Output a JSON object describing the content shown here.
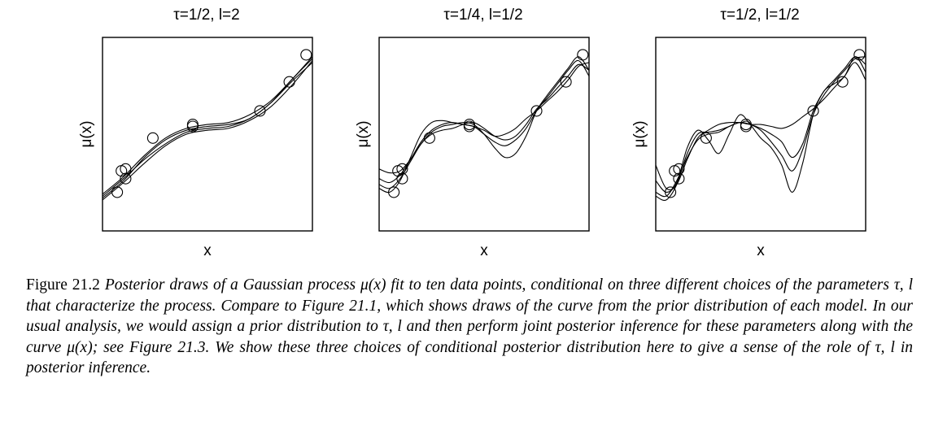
{
  "chart_data": [
    {
      "type": "line",
      "title": "τ=1/2, l=2",
      "xlabel": "x",
      "ylabel": "μ(x)",
      "xlim": [
        0,
        1
      ],
      "ylim": [
        0,
        1
      ],
      "ticks": "none",
      "points": [
        [
          0.07,
          0.2
        ],
        [
          0.09,
          0.31
        ],
        [
          0.11,
          0.32
        ],
        [
          0.11,
          0.27
        ],
        [
          0.24,
          0.48
        ],
        [
          0.43,
          0.54
        ],
        [
          0.43,
          0.55
        ],
        [
          0.75,
          0.62
        ],
        [
          0.89,
          0.77
        ],
        [
          0.97,
          0.91
        ]
      ],
      "series": [
        {
          "x": [
            0,
            0.1,
            0.2,
            0.3,
            0.4,
            0.5,
            0.6,
            0.7,
            0.8,
            0.9,
            1.0
          ],
          "values": [
            0.19,
            0.28,
            0.39,
            0.48,
            0.53,
            0.55,
            0.56,
            0.6,
            0.67,
            0.78,
            0.9
          ]
        },
        {
          "x": [
            0,
            0.1,
            0.2,
            0.3,
            0.4,
            0.5,
            0.6,
            0.7,
            0.8,
            0.9,
            1.0
          ],
          "values": [
            0.17,
            0.26,
            0.38,
            0.47,
            0.52,
            0.54,
            0.55,
            0.58,
            0.66,
            0.77,
            0.87
          ]
        },
        {
          "x": [
            0,
            0.1,
            0.2,
            0.3,
            0.4,
            0.5,
            0.6,
            0.7,
            0.8,
            0.9,
            1.0
          ],
          "values": [
            0.18,
            0.27,
            0.37,
            0.45,
            0.51,
            0.53,
            0.54,
            0.58,
            0.66,
            0.78,
            0.89
          ]
        },
        {
          "x": [
            0,
            0.1,
            0.2,
            0.3,
            0.4,
            0.5,
            0.6,
            0.7,
            0.8,
            0.9,
            1.0
          ],
          "values": [
            0.16,
            0.25,
            0.35,
            0.44,
            0.5,
            0.52,
            0.53,
            0.57,
            0.64,
            0.75,
            0.88
          ]
        }
      ]
    },
    {
      "type": "line",
      "title": "τ=1/4, l=1/2",
      "xlabel": "x",
      "ylabel": "μ(x)",
      "xlim": [
        0,
        1
      ],
      "ylim": [
        0,
        1
      ],
      "ticks": "none",
      "points": [
        [
          0.07,
          0.2
        ],
        [
          0.09,
          0.31
        ],
        [
          0.11,
          0.32
        ],
        [
          0.11,
          0.27
        ],
        [
          0.24,
          0.48
        ],
        [
          0.43,
          0.54
        ],
        [
          0.43,
          0.55
        ],
        [
          0.75,
          0.62
        ],
        [
          0.89,
          0.77
        ],
        [
          0.97,
          0.91
        ]
      ],
      "series": [
        {
          "x": [
            0,
            0.05,
            0.1,
            0.15,
            0.2,
            0.25,
            0.3,
            0.35,
            0.4,
            0.45,
            0.5,
            0.55,
            0.6,
            0.65,
            0.7,
            0.75,
            0.8,
            0.85,
            0.9,
            0.95,
            1.0
          ],
          "values": [
            0.32,
            0.3,
            0.31,
            0.37,
            0.45,
            0.51,
            0.54,
            0.55,
            0.56,
            0.55,
            0.5,
            0.43,
            0.38,
            0.4,
            0.49,
            0.62,
            0.7,
            0.77,
            0.84,
            0.9,
            0.83
          ]
        },
        {
          "x": [
            0,
            0.05,
            0.1,
            0.15,
            0.2,
            0.25,
            0.3,
            0.35,
            0.4,
            0.45,
            0.5,
            0.55,
            0.6,
            0.65,
            0.7,
            0.75,
            0.8,
            0.85,
            0.9,
            0.95,
            1.0
          ],
          "values": [
            0.24,
            0.22,
            0.27,
            0.36,
            0.45,
            0.5,
            0.52,
            0.53,
            0.55,
            0.56,
            0.53,
            0.49,
            0.47,
            0.49,
            0.55,
            0.63,
            0.68,
            0.74,
            0.8,
            0.86,
            0.83
          ]
        },
        {
          "x": [
            0,
            0.05,
            0.1,
            0.15,
            0.2,
            0.25,
            0.3,
            0.35,
            0.4,
            0.45,
            0.5,
            0.55,
            0.6,
            0.65,
            0.7,
            0.75,
            0.8,
            0.85,
            0.9,
            0.95,
            1.0
          ],
          "values": [
            0.22,
            0.2,
            0.26,
            0.38,
            0.5,
            0.56,
            0.57,
            0.56,
            0.55,
            0.54,
            0.52,
            0.49,
            0.5,
            0.53,
            0.58,
            0.62,
            0.67,
            0.72,
            0.78,
            0.85,
            0.87
          ]
        },
        {
          "x": [
            0,
            0.05,
            0.1,
            0.15,
            0.2,
            0.25,
            0.3,
            0.35,
            0.4,
            0.45,
            0.5,
            0.55,
            0.6,
            0.65,
            0.7,
            0.75,
            0.8,
            0.85,
            0.9,
            0.95,
            1.0
          ],
          "values": [
            0.27,
            0.25,
            0.29,
            0.37,
            0.46,
            0.52,
            0.55,
            0.56,
            0.55,
            0.54,
            0.5,
            0.46,
            0.44,
            0.47,
            0.53,
            0.62,
            0.69,
            0.76,
            0.83,
            0.88,
            0.8
          ]
        }
      ]
    },
    {
      "type": "line",
      "title": "τ=1/2, l=1/2",
      "xlabel": "x",
      "ylabel": "μ(x)",
      "xlim": [
        0,
        1
      ],
      "ylim": [
        0,
        1
      ],
      "ticks": "none",
      "points": [
        [
          0.07,
          0.2
        ],
        [
          0.09,
          0.31
        ],
        [
          0.11,
          0.32
        ],
        [
          0.11,
          0.27
        ],
        [
          0.24,
          0.48
        ],
        [
          0.43,
          0.54
        ],
        [
          0.43,
          0.55
        ],
        [
          0.75,
          0.62
        ],
        [
          0.89,
          0.77
        ],
        [
          0.97,
          0.91
        ]
      ],
      "series": [
        {
          "x": [
            0,
            0.05,
            0.1,
            0.15,
            0.2,
            0.25,
            0.3,
            0.35,
            0.4,
            0.45,
            0.5,
            0.55,
            0.6,
            0.65,
            0.7,
            0.75,
            0.8,
            0.85,
            0.9,
            0.95,
            1.0
          ],
          "values": [
            0.26,
            0.2,
            0.25,
            0.43,
            0.52,
            0.47,
            0.4,
            0.5,
            0.6,
            0.55,
            0.48,
            0.43,
            0.34,
            0.2,
            0.35,
            0.6,
            0.72,
            0.76,
            0.8,
            0.9,
            0.82
          ]
        },
        {
          "x": [
            0,
            0.05,
            0.1,
            0.15,
            0.2,
            0.25,
            0.3,
            0.35,
            0.4,
            0.45,
            0.5,
            0.55,
            0.6,
            0.65,
            0.7,
            0.75,
            0.8,
            0.85,
            0.9,
            0.95,
            1.0
          ],
          "values": [
            0.18,
            0.16,
            0.24,
            0.4,
            0.5,
            0.51,
            0.52,
            0.54,
            0.56,
            0.55,
            0.53,
            0.5,
            0.46,
            0.38,
            0.45,
            0.62,
            0.72,
            0.78,
            0.84,
            0.9,
            0.86
          ]
        },
        {
          "x": [
            0,
            0.05,
            0.1,
            0.15,
            0.2,
            0.25,
            0.3,
            0.35,
            0.4,
            0.45,
            0.5,
            0.55,
            0.6,
            0.65,
            0.7,
            0.75,
            0.8,
            0.85,
            0.9,
            0.95,
            1.0
          ],
          "values": [
            0.34,
            0.22,
            0.24,
            0.37,
            0.48,
            0.52,
            0.55,
            0.56,
            0.56,
            0.55,
            0.55,
            0.54,
            0.53,
            0.55,
            0.59,
            0.63,
            0.68,
            0.74,
            0.8,
            0.87,
            0.78
          ]
        },
        {
          "x": [
            0,
            0.05,
            0.1,
            0.15,
            0.2,
            0.25,
            0.3,
            0.35,
            0.4,
            0.45,
            0.5,
            0.55,
            0.6,
            0.65,
            0.7,
            0.75,
            0.8,
            0.85,
            0.9,
            0.95,
            1.0
          ],
          "values": [
            0.2,
            0.18,
            0.26,
            0.38,
            0.47,
            0.5,
            0.51,
            0.54,
            0.56,
            0.55,
            0.52,
            0.46,
            0.39,
            0.31,
            0.42,
            0.6,
            0.7,
            0.77,
            0.83,
            0.89,
            0.9
          ]
        }
      ]
    }
  ],
  "caption": {
    "label": "Figure 21.2",
    "text": "Posterior draws of a Gaussian process μ(x) fit to ten data points, conditional on three different choices of the parameters τ, l that characterize the process. Compare to Figure 21.1, which shows draws of the curve from the prior distribution of each model. In our usual analysis, we would assign a prior distribution to τ, l and then perform joint posterior inference for these parameters along with the curve μ(x); see Figure 21.3. We show these three choices of conditional posterior distribution here to give a sense of the role of τ, l in posterior inference."
  }
}
